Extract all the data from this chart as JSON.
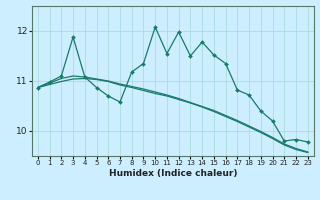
{
  "title": "",
  "xlabel": "Humidex (Indice chaleur)",
  "bg_color": "#cceeff",
  "grid_color": "#aadddd",
  "line_color": "#1a7a6a",
  "xlim": [
    -0.5,
    23.5
  ],
  "ylim": [
    9.5,
    12.5
  ],
  "yticks": [
    10,
    11,
    12
  ],
  "xticks": [
    0,
    1,
    2,
    3,
    4,
    5,
    6,
    7,
    8,
    9,
    10,
    11,
    12,
    13,
    14,
    15,
    16,
    17,
    18,
    19,
    20,
    21,
    22,
    23
  ],
  "series1_x": [
    0,
    1,
    2,
    3,
    4,
    5,
    6,
    7,
    8,
    9,
    10,
    11,
    12,
    13,
    14,
    15,
    16,
    17,
    18,
    19,
    20,
    21,
    22,
    23
  ],
  "series1_y": [
    10.87,
    10.98,
    11.1,
    11.88,
    11.08,
    10.87,
    10.7,
    10.58,
    11.18,
    11.35,
    12.08,
    11.55,
    11.98,
    11.5,
    11.78,
    11.52,
    11.35,
    10.82,
    10.72,
    10.4,
    10.2,
    9.8,
    9.83,
    9.78
  ],
  "series2_x": [
    0,
    1,
    2,
    3,
    4,
    5,
    6,
    7,
    8,
    9,
    10,
    11,
    12,
    13,
    14,
    15,
    16,
    17,
    18,
    19,
    20,
    21,
    22,
    23
  ],
  "series2_y": [
    10.87,
    10.96,
    11.05,
    11.1,
    11.08,
    11.04,
    11.0,
    10.94,
    10.89,
    10.84,
    10.78,
    10.72,
    10.65,
    10.57,
    10.49,
    10.41,
    10.31,
    10.21,
    10.1,
    9.99,
    9.87,
    9.74,
    9.65,
    9.58
  ],
  "series3_x": [
    0,
    1,
    2,
    3,
    4,
    5,
    6,
    7,
    8,
    9,
    10,
    11,
    12,
    13,
    14,
    15,
    16,
    17,
    18,
    19,
    20,
    21,
    22,
    23
  ],
  "series3_y": [
    10.87,
    10.93,
    10.99,
    11.04,
    11.05,
    11.03,
    10.99,
    10.92,
    10.87,
    10.81,
    10.75,
    10.7,
    10.63,
    10.56,
    10.48,
    10.39,
    10.29,
    10.19,
    10.08,
    9.97,
    9.85,
    9.72,
    9.63,
    9.57
  ]
}
